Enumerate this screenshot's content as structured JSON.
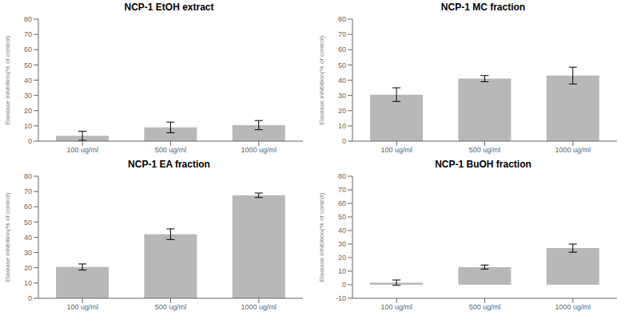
{
  "chart_data": [
    {
      "type": "bar",
      "title": "NCP-1 EtOH extract",
      "categories": [
        "100 ug/ml",
        "500 ug/ml",
        "1000 ug/ml"
      ],
      "values": [
        3.5,
        9.0,
        10.5
      ],
      "errors": [
        3.0,
        3.5,
        3.0
      ],
      "ylabel": "Elastase inhibition(% of control)",
      "ylim": [
        0,
        80
      ],
      "yticks": [
        0,
        10,
        20,
        30,
        40,
        50,
        60,
        70,
        80
      ],
      "color": "#b8b8b8",
      "grid": false
    },
    {
      "type": "bar",
      "title": "NCP-1 MC fraction",
      "categories": [
        "100 ug/ml",
        "500 ug/ml",
        "1000 ug/ml"
      ],
      "values": [
        30.5,
        41.0,
        43.0
      ],
      "errors": [
        4.5,
        2.0,
        5.5
      ],
      "ylabel": "Elastase inhibition(% of control)",
      "ylim": [
        0,
        80
      ],
      "yticks": [
        0,
        10,
        20,
        30,
        40,
        50,
        60,
        70,
        80
      ],
      "color": "#b8b8b8",
      "grid": false
    },
    {
      "type": "bar",
      "title": "NCP-1 EA fraction",
      "categories": [
        "100 ug/ml",
        "500 ug/ml",
        "1000 ug/ml"
      ],
      "values": [
        20.5,
        42.0,
        67.5
      ],
      "errors": [
        2.0,
        3.5,
        1.5
      ],
      "ylabel": "Elastase inhibition(% of control)",
      "ylim": [
        0,
        80
      ],
      "yticks": [
        0,
        10,
        20,
        30,
        40,
        50,
        60,
        70,
        80
      ],
      "color": "#b8b8b8",
      "grid": false
    },
    {
      "type": "bar",
      "title": "NCP-1 BuOH fraction",
      "categories": [
        "100 ug/ml",
        "500 ug/ml",
        "1000 ug/ml"
      ],
      "values": [
        1.5,
        13.0,
        27.0
      ],
      "errors": [
        2.0,
        1.5,
        3.0
      ],
      "ylabel": "Elastase inhibition(% of control)",
      "ylim": [
        -10,
        80
      ],
      "yticks": [
        -10,
        0,
        10,
        20,
        30,
        40,
        50,
        60,
        70,
        80
      ],
      "color": "#b8b8b8",
      "grid": false
    }
  ]
}
